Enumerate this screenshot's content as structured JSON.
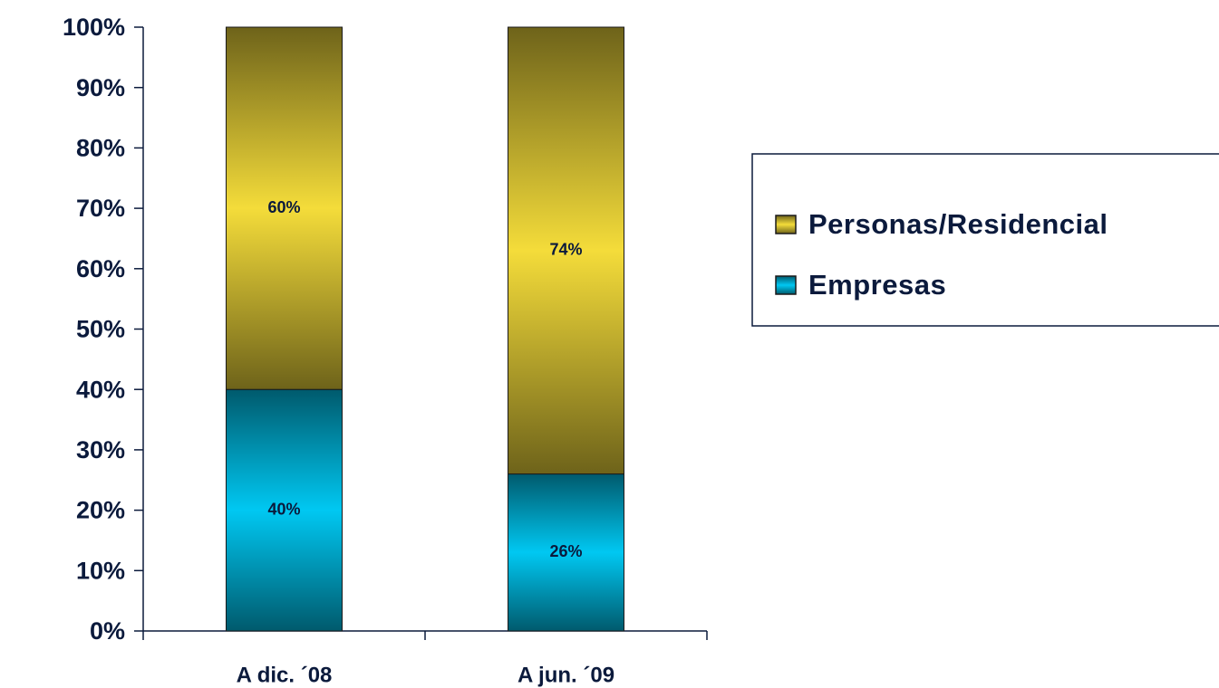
{
  "chart_data": {
    "type": "stacked_bar",
    "categories": [
      "A dic. ´08",
      "A jun. ´09"
    ],
    "series": [
      {
        "name": "Empresas",
        "color": "#00c8f2",
        "values": [
          40,
          26
        ],
        "value_labels": [
          "40%",
          "26%"
        ]
      },
      {
        "name": "Personas/Residencial",
        "color": "#f4dc3a",
        "values": [
          60,
          74
        ],
        "value_labels": [
          "60%",
          "74%"
        ]
      }
    ],
    "ylim": [
      0,
      100
    ],
    "yticks": [
      {
        "value": 0,
        "label": "0%"
      },
      {
        "value": 10,
        "label": "10%"
      },
      {
        "value": 20,
        "label": "20%"
      },
      {
        "value": 30,
        "label": "30%"
      },
      {
        "value": 40,
        "label": "40%"
      },
      {
        "value": 50,
        "label": "50%"
      },
      {
        "value": 60,
        "label": "60%"
      },
      {
        "value": 70,
        "label": "70%"
      },
      {
        "value": 80,
        "label": "80%"
      },
      {
        "value": 90,
        "label": "90%"
      },
      {
        "value": 100,
        "label": "100%"
      }
    ],
    "legend": "right"
  }
}
